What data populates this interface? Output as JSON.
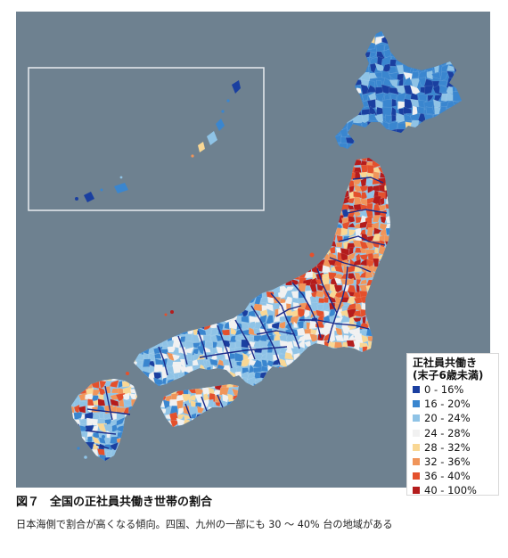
{
  "legend": {
    "title_line1": "正社員共働き",
    "title_line2": "(末子6歳未満)",
    "items": [
      {
        "label": "0 - 16%",
        "color": "#1a3fa0"
      },
      {
        "label": "16 - 20%",
        "color": "#3a86cf"
      },
      {
        "label": "20 - 24%",
        "color": "#8fc3e6"
      },
      {
        "label": "24 - 28%",
        "color": "#f1f1f1"
      },
      {
        "label": "28 - 32%",
        "color": "#f9d794"
      },
      {
        "label": "32 - 36%",
        "color": "#f0955a"
      },
      {
        "label": "36 - 40%",
        "color": "#e4502c"
      },
      {
        "label": "40 - 100%",
        "color": "#b41c1c"
      }
    ]
  },
  "caption": {
    "figure_number": "図７",
    "title": "全国の正社員共働き世帯の割合"
  },
  "subcaption": "日本海側で割合が高くなる傾向。四国、九州の一部にも 30 ～ 40% 台の地域がある",
  "colors": {
    "sea": "#6e8190",
    "inset_frame": "#e8ecef",
    "prefecture_border": "#1b2a8a"
  }
}
